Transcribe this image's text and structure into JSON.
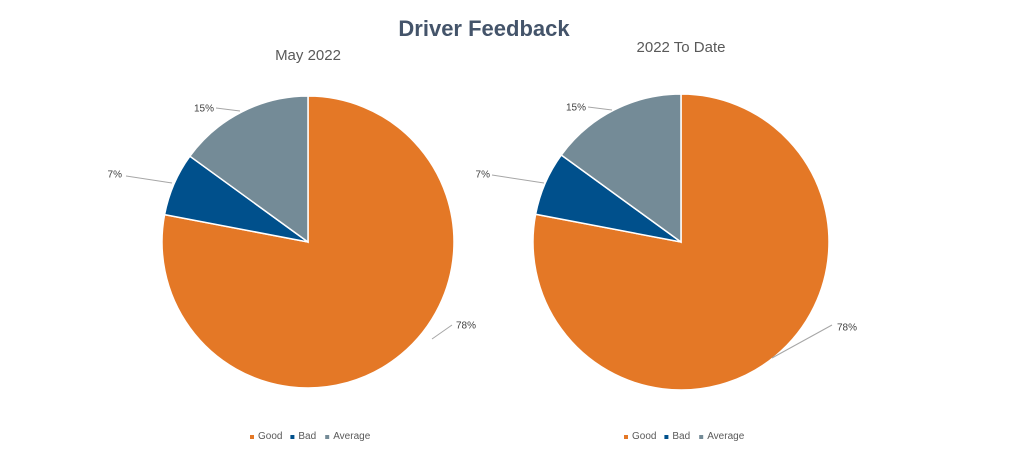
{
  "title": "Driver Feedback",
  "colors": {
    "Good": "#e47826",
    "Bad": "#00508c",
    "Average": "#748b97"
  },
  "chart_data": [
    {
      "type": "pie",
      "title": "May 2022",
      "legend_position": "bottom",
      "categories": [
        "Good",
        "Bad",
        "Average"
      ],
      "values": [
        78,
        7,
        15
      ],
      "labels": [
        "78%",
        "7%",
        "15%"
      ]
    },
    {
      "type": "pie",
      "title": "2022 To Date",
      "legend_position": "bottom",
      "categories": [
        "Good",
        "Bad",
        "Average"
      ],
      "values": [
        78,
        7,
        15
      ],
      "labels": [
        "78%",
        "7%",
        "15%"
      ]
    }
  ]
}
